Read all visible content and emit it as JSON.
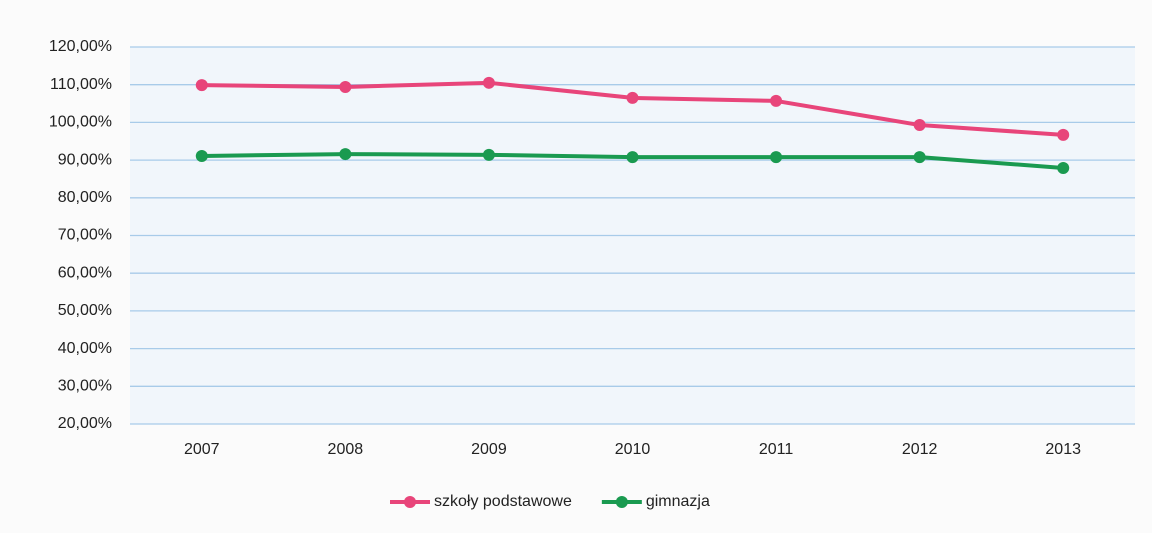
{
  "chart_data": {
    "type": "line",
    "categories": [
      "2007",
      "2008",
      "2009",
      "2010",
      "2011",
      "2012",
      "2013"
    ],
    "series": [
      {
        "name": "szkoły podstawowe",
        "color": "#e8457a",
        "values": [
          109.9,
          109.4,
          110.5,
          106.5,
          105.7,
          99.3,
          96.7
        ]
      },
      {
        "name": "gimnazja",
        "color": "#1a9a50",
        "values": [
          91.1,
          91.6,
          91.4,
          90.8,
          90.8,
          90.8,
          87.9
        ]
      }
    ],
    "ylim": [
      20,
      120
    ],
    "yticks": [
      {
        "value": 20,
        "label": "20,00%"
      },
      {
        "value": 30,
        "label": "30,00%"
      },
      {
        "value": 40,
        "label": "40,00%"
      },
      {
        "value": 50,
        "label": "50,00%"
      },
      {
        "value": 60,
        "label": "60,00%"
      },
      {
        "value": 70,
        "label": "70,00%"
      },
      {
        "value": 80,
        "label": "80,00%"
      },
      {
        "value": 90,
        "label": "90,00%"
      },
      {
        "value": 100,
        "label": "100,00%"
      },
      {
        "value": 110,
        "label": "110,00%"
      },
      {
        "value": 120,
        "label": "120,00%"
      }
    ],
    "grid": true,
    "legend": "bottom"
  }
}
